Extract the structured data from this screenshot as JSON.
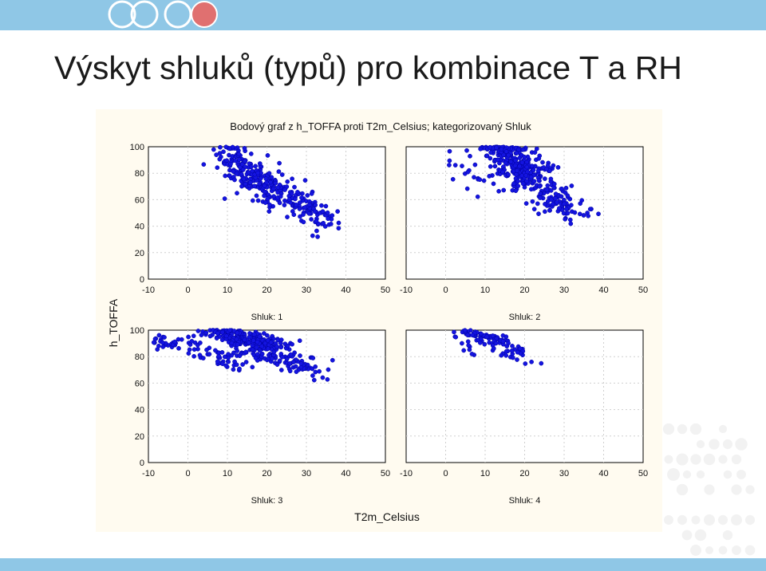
{
  "slide": {
    "title": "Výskyt shluků (typů) pro kombinace T a RH"
  },
  "colors": {
    "point": "#1414e0",
    "point_edge": "#0000a0",
    "panel_bg": "#fffbf0",
    "band": "#8fc7e6"
  },
  "chart_data": {
    "type": "scatter",
    "title": "Bodový graf z h_TOFFA proti T2m_Celsius; kategorizovaný Shluk",
    "xlabel": "T2m_Celsius",
    "ylabel": "h_TOFFA",
    "xlim": [
      -10,
      50
    ],
    "ylim": [
      0,
      100
    ],
    "x_ticks": [
      "-10",
      "0",
      "10",
      "20",
      "30",
      "40",
      "50"
    ],
    "y_ticks": [
      "0",
      "20",
      "40",
      "60",
      "80",
      "100"
    ],
    "grid": true,
    "panels": [
      {
        "label": "Shluk: 1",
        "clusters": [
          {
            "n": 130,
            "x": [
              10,
              17
            ],
            "y": [
              98,
              72
            ],
            "sx": 2.6,
            "sy": 5.5
          },
          {
            "n": 140,
            "x": [
              15,
              28
            ],
            "y": [
              80,
              55
            ],
            "sx": 3.2,
            "sy": 6.0
          },
          {
            "n": 70,
            "x": [
              27,
              35
            ],
            "y": [
              58,
              42
            ],
            "sx": 2.5,
            "sy": 3.8
          }
        ]
      },
      {
        "label": "Shluk: 2",
        "clusters": [
          {
            "n": 240,
            "x": [
              12,
              22
            ],
            "y": [
              100,
              80
            ],
            "sx": 3.2,
            "sy": 5.0
          },
          {
            "n": 110,
            "x": [
              18,
              28
            ],
            "y": [
              82,
              60
            ],
            "sx": 3.2,
            "sy": 6.0
          },
          {
            "n": 50,
            "x": [
              26,
              34
            ],
            "y": [
              64,
              46
            ],
            "sx": 2.6,
            "sy": 3.5
          },
          {
            "n": 20,
            "x": [
              2,
              12
            ],
            "y": [
              92,
              65
            ],
            "sx": 2.5,
            "sy": 3.5
          }
        ]
      },
      {
        "label": "Shluk: 3",
        "clusters": [
          {
            "n": 200,
            "x": [
              8,
              22
            ],
            "y": [
              100,
              86
            ],
            "sx": 3.0,
            "sy": 2.6
          },
          {
            "n": 110,
            "x": [
              14,
              28
            ],
            "y": [
              90,
              72
            ],
            "sx": 3.5,
            "sy": 3.4
          },
          {
            "n": 40,
            "x": [
              -8,
              4
            ],
            "y": [
              94,
              86
            ],
            "sx": 2.0,
            "sy": 2.5
          },
          {
            "n": 40,
            "x": [
              5,
              15
            ],
            "y": [
              82,
              72
            ],
            "sx": 2.8,
            "sy": 3.2
          },
          {
            "n": 20,
            "x": [
              27,
              33
            ],
            "y": [
              76,
              66
            ],
            "sx": 2.0,
            "sy": 2.5
          }
        ]
      },
      {
        "label": "Shluk: 4",
        "clusters": [
          {
            "n": 45,
            "x": [
              4,
              12
            ],
            "y": [
              100,
              92
            ],
            "sx": 1.6,
            "sy": 1.6
          },
          {
            "n": 35,
            "x": [
              10,
              18
            ],
            "y": [
              96,
              82
            ],
            "sx": 2.0,
            "sy": 2.5
          },
          {
            "n": 20,
            "x": [
              14,
              22
            ],
            "y": [
              88,
              77
            ],
            "sx": 1.8,
            "sy": 2.0
          },
          {
            "n": 8,
            "x": [
              5,
              7
            ],
            "y": [
              92,
              80
            ],
            "sx": 0.8,
            "sy": 2.2
          }
        ]
      }
    ]
  }
}
